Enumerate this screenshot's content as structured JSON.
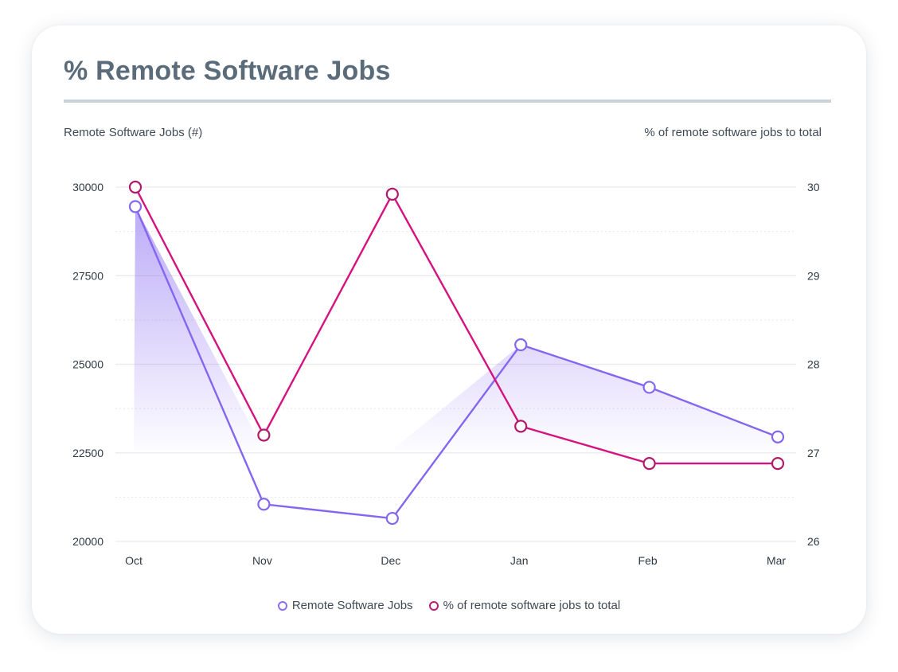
{
  "title": "% Remote Software Jobs",
  "colors": {
    "jobs": "#8466f0",
    "pct": "#d4137f",
    "pct_marker": "#b01a6a",
    "grid": "#e6e9ee",
    "card_title": "#5a6b7a"
  },
  "chart_data": {
    "type": "line",
    "title": "% Remote Software Jobs",
    "categories": [
      "Oct",
      "Nov",
      "Dec",
      "Jan",
      "Feb",
      "Mar"
    ],
    "y_left": {
      "label": "Remote Software Jobs (#)",
      "range": [
        20000,
        30000
      ],
      "ticks": [
        "30000",
        "27500",
        "25000",
        "22500",
        "20000"
      ]
    },
    "y_right": {
      "label": "% of remote software jobs to total",
      "range": [
        26,
        30
      ],
      "ticks": [
        "30",
        "29",
        "28",
        "27",
        "26"
      ]
    },
    "series": [
      {
        "name": "Remote Software Jobs",
        "axis": "left",
        "area_fill": true,
        "values": [
          29450,
          21050,
          20650,
          25550,
          24350,
          22950
        ]
      },
      {
        "name": "% of remote software jobs to total",
        "axis": "right",
        "area_fill": false,
        "values": [
          30.0,
          27.2,
          29.92,
          27.3,
          26.88,
          26.88
        ]
      }
    ],
    "grid": true,
    "legend_position": "bottom-center"
  }
}
